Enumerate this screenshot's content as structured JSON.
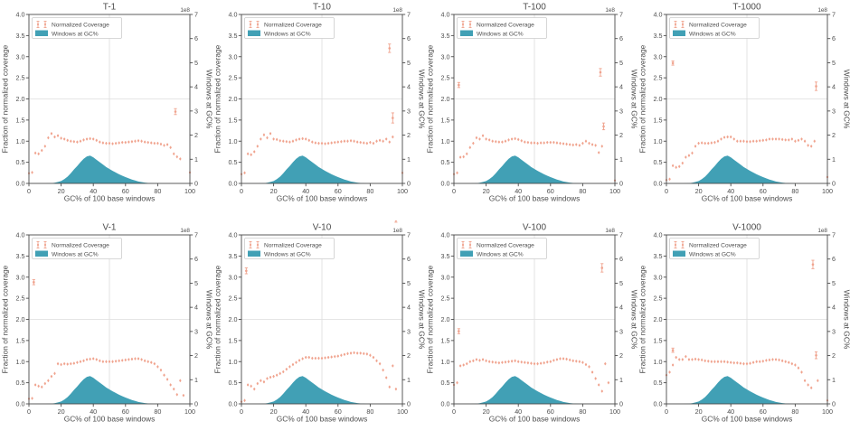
{
  "figure": {
    "background": "#ffffff",
    "xlabel": "GC% of 100 base windows",
    "ylabel_left": "Fraction of normalized coverage",
    "ylabel_right": "Windows at GC%",
    "offset_text": "1e8",
    "legend": {
      "coverage_label": "Normalized Coverage",
      "windows_label": "Windows at GC%"
    },
    "colors": {
      "coverage": "#f0a38e",
      "windows": "#41a0b5",
      "grid": "#dcdcdc",
      "spine": "#4a4a4a",
      "text": "#4d4d4d",
      "legend_border": "#cccccc"
    },
    "xlim": [
      0,
      100
    ],
    "ylim_left": [
      0,
      4
    ],
    "ylim_right": [
      0,
      7
    ],
    "xticks": [
      "0",
      "20",
      "40",
      "60",
      "80",
      "100"
    ],
    "yticks_left": [
      "0.0",
      "0.5",
      "1.0",
      "1.5",
      "2.0",
      "2.5",
      "3.0",
      "3.5",
      "4.0"
    ],
    "yticks_right": [
      "0",
      "1",
      "2",
      "3",
      "4",
      "5",
      "6",
      "7"
    ],
    "grid": {
      "x": 50,
      "y_left": 2.0
    },
    "windows_hist": {
      "units": "1e8",
      "axis": "right",
      "x_start": 0,
      "x_step": 2,
      "values": [
        0,
        0,
        0,
        0,
        0,
        0,
        0.005,
        0.01,
        0.03,
        0.06,
        0.1,
        0.18,
        0.28,
        0.42,
        0.58,
        0.72,
        0.88,
        1.02,
        1.12,
        1.15,
        1.08,
        0.98,
        0.88,
        0.78,
        0.68,
        0.6,
        0.52,
        0.45,
        0.38,
        0.32,
        0.26,
        0.21,
        0.16,
        0.12,
        0.08,
        0.055,
        0.035,
        0.02,
        0.012,
        0.007,
        0.004,
        0.002,
        0.001,
        0,
        0,
        0,
        0,
        0,
        0,
        0,
        0
      ]
    }
  },
  "chart_data": [
    {
      "type": "scatter+area",
      "title": "T-1",
      "coverage": {
        "x_start": 0,
        "x_step": 2,
        "y": [
          0.24,
          0.26,
          0.72,
          0.7,
          0.78,
          0.88,
          1.08,
          1.18,
          1.1,
          1.13,
          1.07,
          1.05,
          1.02,
          1.0,
          0.99,
          0.98,
          1.0,
          1.03,
          1.05,
          1.06,
          1.05,
          1.02,
          0.98,
          0.96,
          0.95,
          0.95,
          0.94,
          0.95,
          0.96,
          0.97,
          0.97,
          0.98,
          0.99,
          1.0,
          1.01,
          1.0,
          0.98,
          0.97,
          0.96,
          0.95,
          0.95,
          0.93,
          0.9,
          0.92,
          0.85,
          0.7,
          0.63,
          0.58,
          null,
          null,
          0.26
        ]
      },
      "outliers": [
        {
          "x": 91,
          "y": 1.7,
          "err": 0.07
        }
      ]
    },
    {
      "type": "scatter+area",
      "title": "T-10",
      "coverage": {
        "x_start": 0,
        "x_step": 2,
        "y": [
          0.22,
          0.25,
          0.7,
          0.68,
          0.75,
          0.88,
          1.05,
          1.15,
          1.08,
          1.18,
          1.05,
          1.04,
          1.01,
          1.0,
          0.99,
          0.98,
          1.0,
          1.03,
          1.05,
          1.06,
          1.05,
          1.02,
          0.98,
          0.96,
          0.95,
          0.95,
          0.94,
          0.95,
          0.96,
          0.97,
          0.98,
          0.99,
          1.0,
          1.0,
          1.01,
          1.0,
          0.98,
          0.97,
          0.96,
          0.95,
          0.97,
          0.95,
          1.0,
          1.02,
          1.0,
          1.05,
          0.98,
          1.1,
          null,
          null,
          0.25
        ]
      },
      "outliers": [
        {
          "x": 92,
          "y": 3.2,
          "err": 0.1
        },
        {
          "x": 94,
          "y": 1.55,
          "err": 0.12
        }
      ]
    },
    {
      "type": "scatter+area",
      "title": "T-100",
      "coverage": {
        "x_start": 0,
        "x_step": 2,
        "y": [
          0.22,
          0.25,
          0.62,
          0.63,
          0.7,
          0.85,
          0.95,
          1.08,
          1.05,
          1.13,
          1.05,
          1.03,
          1.0,
          0.99,
          0.98,
          0.98,
          1.0,
          1.03,
          1.05,
          1.06,
          1.04,
          1.01,
          0.98,
          0.97,
          0.96,
          0.96,
          0.95,
          0.96,
          0.96,
          0.97,
          0.97,
          0.97,
          0.96,
          0.95,
          0.94,
          0.93,
          0.92,
          0.91,
          0.92,
          0.9,
          0.95,
          1.0,
          0.95,
          0.92,
          0.9,
          0.73,
          0.88,
          null,
          null,
          null,
          0.07
        ]
      },
      "outliers": [
        {
          "x": 3,
          "y": 2.33,
          "err": 0.06
        },
        {
          "x": 91,
          "y": 2.63,
          "err": 0.09
        },
        {
          "x": 93,
          "y": 1.35,
          "err": 0.08
        }
      ]
    },
    {
      "type": "scatter+area",
      "title": "T-1000",
      "coverage": {
        "x_start": 0,
        "x_step": 2,
        "y": [
          0.08,
          0.1,
          0.42,
          0.38,
          0.4,
          0.48,
          0.62,
          0.66,
          0.72,
          0.88,
          0.95,
          0.96,
          0.95,
          0.95,
          0.96,
          0.97,
          1.0,
          1.05,
          1.09,
          1.1,
          1.1,
          1.05,
          1.0,
          1.0,
          1.0,
          0.99,
          0.99,
          1.0,
          1.0,
          1.01,
          1.02,
          1.03,
          1.05,
          1.05,
          1.05,
          1.05,
          1.04,
          1.03,
          1.03,
          1.05,
          1.0,
          1.02,
          1.05,
          1.0,
          0.9,
          0.88,
          1.0,
          null,
          null,
          null,
          0.15
        ]
      },
      "outliers": [
        {
          "x": 4,
          "y": 2.85,
          "err": 0.05
        },
        {
          "x": 93,
          "y": 2.3,
          "err": 0.1
        }
      ]
    },
    {
      "type": "scatter+area",
      "title": "V-1",
      "coverage": {
        "x_start": 0,
        "x_step": 2,
        "y": [
          0.12,
          0.13,
          0.45,
          0.42,
          0.4,
          0.48,
          0.55,
          0.65,
          0.72,
          0.95,
          0.93,
          0.95,
          0.94,
          0.95,
          0.96,
          0.98,
          1.0,
          1.02,
          1.05,
          1.06,
          1.07,
          1.05,
          1.02,
          1.0,
          1.0,
          1.0,
          1.0,
          1.01,
          1.02,
          1.03,
          1.04,
          1.05,
          1.06,
          1.07,
          1.07,
          1.05,
          1.02,
          1.0,
          0.98,
          0.95,
          0.88,
          0.8,
          0.68,
          0.58,
          0.45,
          0.35,
          0.22,
          0.55,
          0.2,
          null,
          null
        ]
      },
      "outliers": [
        {
          "x": 3,
          "y": 2.88,
          "err": 0.06
        }
      ]
    },
    {
      "type": "scatter+area",
      "title": "V-10",
      "coverage": {
        "x_start": 0,
        "x_step": 2,
        "y": [
          0.05,
          0.08,
          0.45,
          0.42,
          0.35,
          0.48,
          0.55,
          0.52,
          0.6,
          0.63,
          0.65,
          0.68,
          0.72,
          0.76,
          0.82,
          0.88,
          0.93,
          0.98,
          1.03,
          1.07,
          1.1,
          1.1,
          1.08,
          1.08,
          1.08,
          1.08,
          1.09,
          1.1,
          1.11,
          1.12,
          1.13,
          1.15,
          1.17,
          1.19,
          1.2,
          1.21,
          1.2,
          1.2,
          1.19,
          1.18,
          1.15,
          1.1,
          1.02,
          0.95,
          0.8,
          0.62,
          0.4,
          0.9,
          0.35,
          null,
          null
        ]
      },
      "outliers": [
        {
          "x": 3,
          "y": 3.15,
          "err": 0.07
        },
        {
          "x": 96,
          "y": 4.35,
          "err": 0.05
        }
      ]
    },
    {
      "type": "scatter+area",
      "title": "V-100",
      "coverage": {
        "x_start": 0,
        "x_step": 2,
        "y": [
          0.45,
          0.5,
          0.9,
          0.92,
          0.95,
          1.0,
          1.02,
          1.05,
          1.03,
          1.05,
          1.02,
          1.0,
          0.99,
          0.98,
          0.97,
          0.98,
          0.99,
          1.0,
          1.01,
          1.02,
          1.0,
          0.99,
          0.98,
          0.97,
          0.96,
          0.95,
          0.95,
          0.96,
          0.97,
          0.99,
          1.0,
          1.03,
          1.05,
          1.07,
          1.07,
          1.06,
          1.04,
          1.02,
          1.01,
          1.0,
          0.98,
          0.93,
          0.88,
          0.75,
          0.6,
          0.45,
          0.3,
          0.95,
          0.5,
          null,
          null
        ]
      },
      "outliers": [
        {
          "x": 3,
          "y": 1.72,
          "err": 0.06
        },
        {
          "x": 92,
          "y": 3.22,
          "err": 0.1
        }
      ]
    },
    {
      "type": "scatter+area",
      "title": "V-1000",
      "coverage": {
        "x_start": 0,
        "x_step": 2,
        "y": [
          0.68,
          0.75,
          0.92,
          1.1,
          1.05,
          1.05,
          1.12,
          1.05,
          1.05,
          1.06,
          1.05,
          1.04,
          1.02,
          1.01,
          1.0,
          1.0,
          1.0,
          1.0,
          1.0,
          0.99,
          0.98,
          0.97,
          0.97,
          0.96,
          0.95,
          0.95,
          0.96,
          0.98,
          1.0,
          1.0,
          1.01,
          1.03,
          1.04,
          1.05,
          1.05,
          1.04,
          1.02,
          1.0,
          0.98,
          0.95,
          0.92,
          0.85,
          0.75,
          0.55,
          0.45,
          0.38,
          null,
          0.55,
          null,
          null,
          0.08
        ]
      },
      "outliers": [
        {
          "x": 4,
          "y": 1.27,
          "err": 0.05
        },
        {
          "x": 91,
          "y": 3.3,
          "err": 0.1
        },
        {
          "x": 93,
          "y": 1.15,
          "err": 0.08
        }
      ]
    }
  ]
}
